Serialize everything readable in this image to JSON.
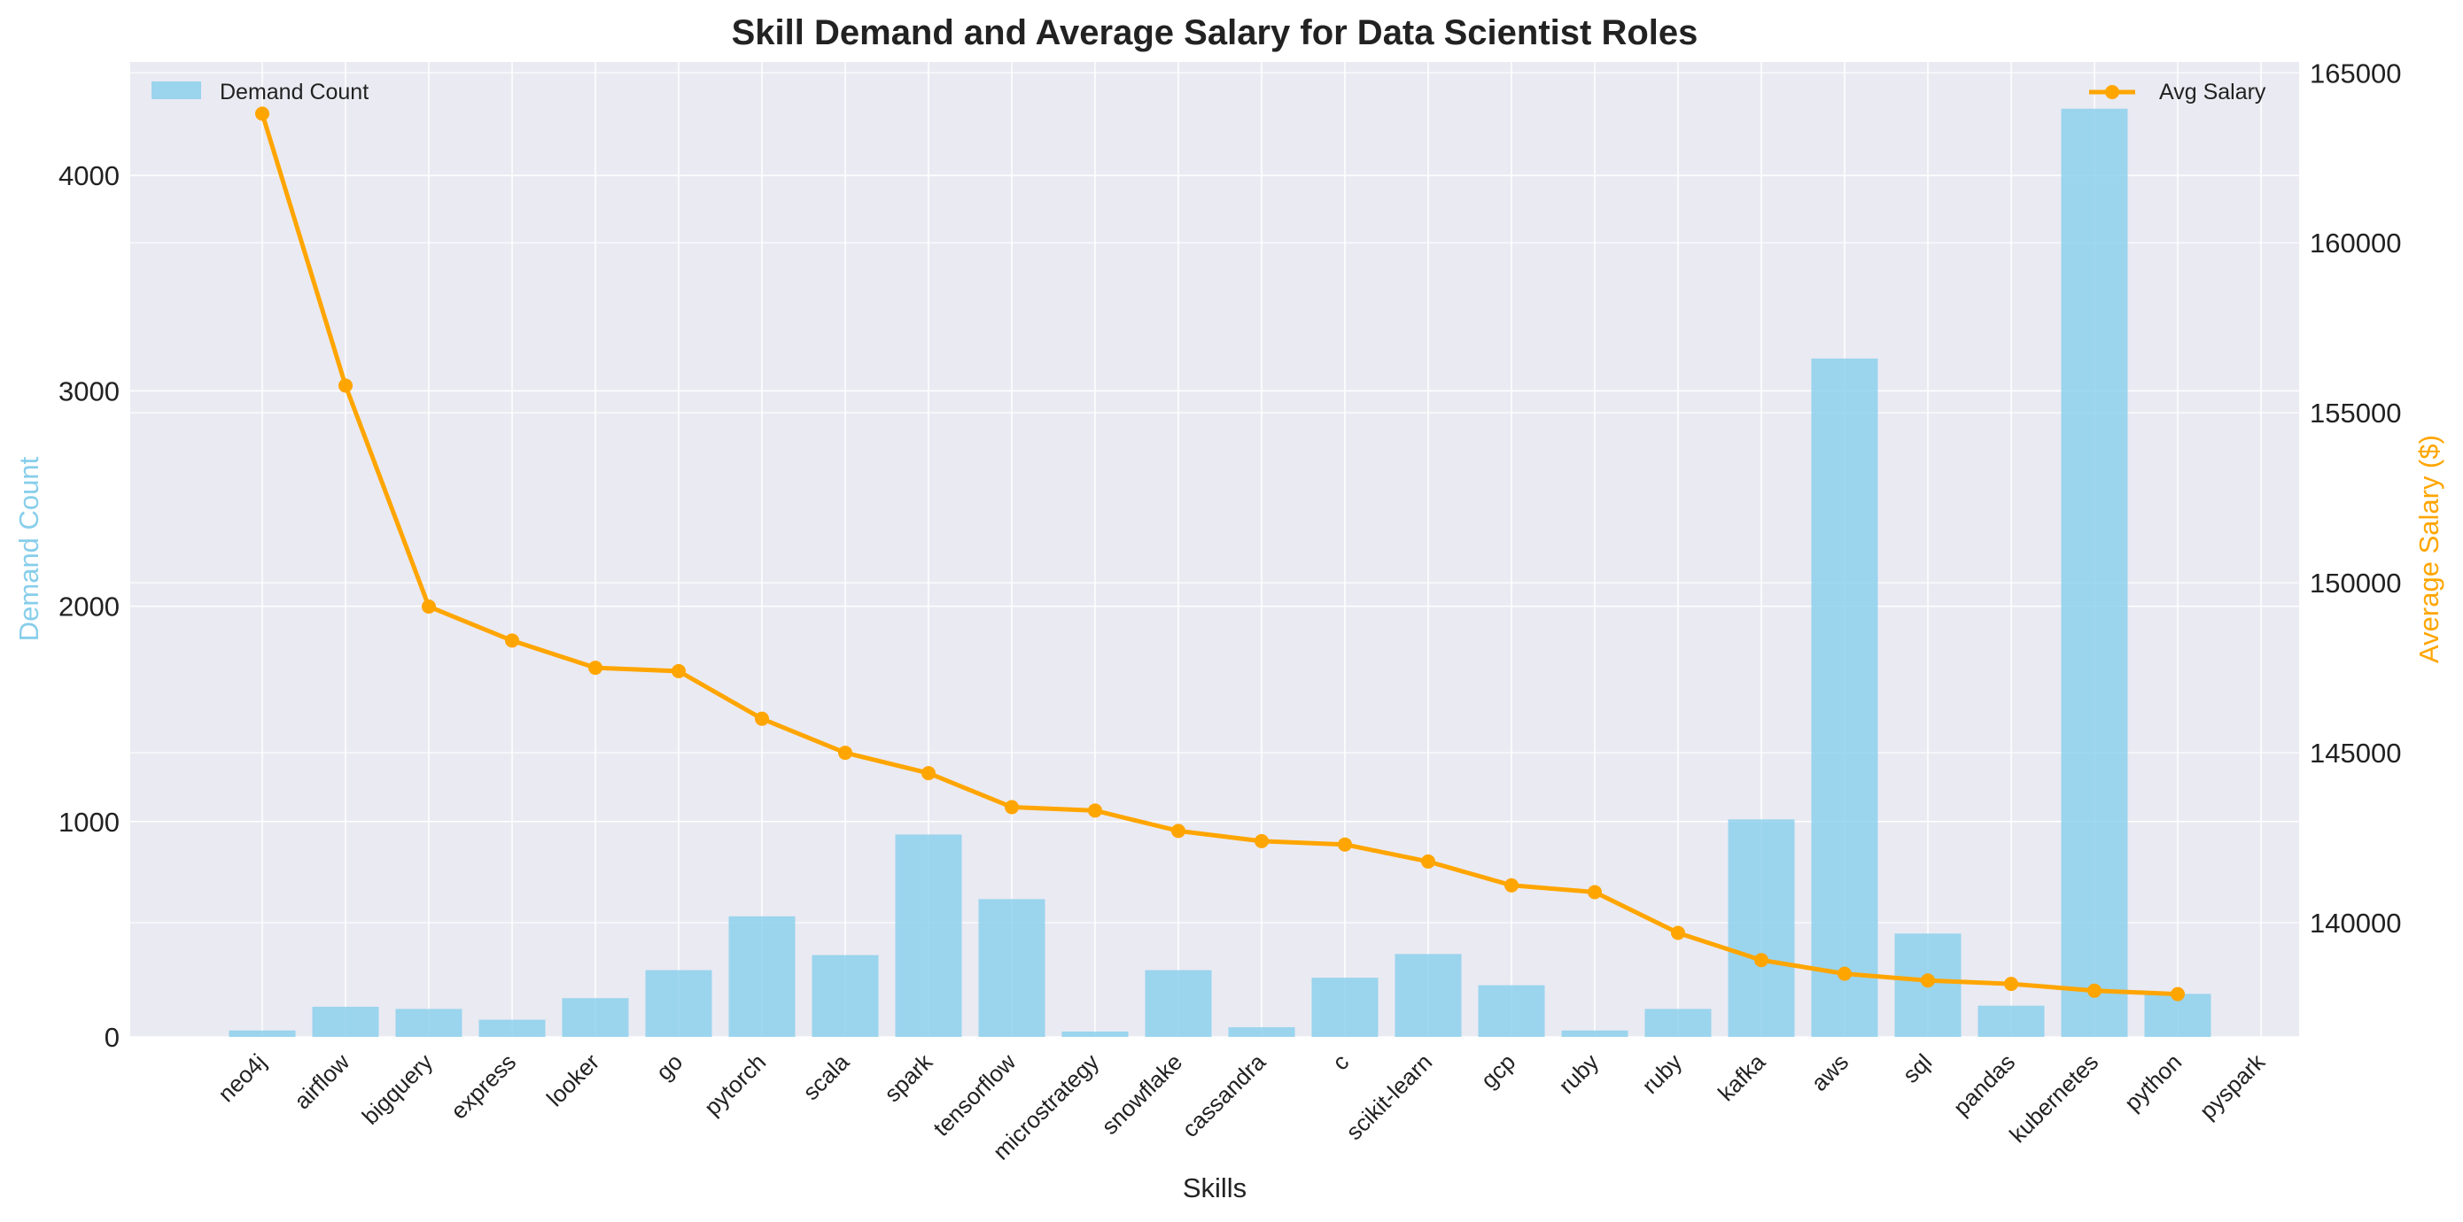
{
  "chart_data": {
    "type": "bar",
    "title": "Skill Demand and Average Salary for Data Scientist Roles",
    "xlabel": "Skills",
    "ylabel_left": "Demand Count",
    "ylabel_right": "Average Salary ($)",
    "categories": [
      "neo4j",
      "airflow",
      "bigquery",
      "express",
      "looker",
      "go",
      "pytorch",
      "scala",
      "spark",
      "tensorflow",
      "microstrategy",
      "snowflake",
      "cassandra",
      "c",
      "scikit-learn",
      "gcp",
      "ruby",
      "ruby",
      "kafka",
      "aws",
      "sql",
      "pandas",
      "kubernetes",
      "python",
      "pyspark"
    ],
    "series": [
      {
        "name": "Demand Count",
        "type": "bar",
        "axis": "left",
        "color": "#87ceeb",
        "values": [
          30,
          140,
          130,
          80,
          180,
          310,
          560,
          380,
          940,
          640,
          25,
          310,
          45,
          275,
          385,
          240,
          30,
          130,
          1010,
          3150,
          480,
          145,
          4310,
          200,
          null
        ]
      },
      {
        "name": "Avg Salary",
        "type": "line",
        "axis": "right",
        "color": "#ffa500",
        "values": [
          163800,
          155800,
          149300,
          148300,
          147500,
          147400,
          146000,
          145000,
          144400,
          143400,
          143300,
          142700,
          142400,
          142300,
          141800,
          141100,
          140900,
          139700,
          138900,
          138500,
          138300,
          138200,
          138000,
          137900,
          null
        ]
      }
    ],
    "ylim_left": [
      0,
      4527
    ],
    "yticks_left": [
      "0",
      "1000",
      "2000",
      "3000",
      "4000"
    ],
    "ylim_right": [
      136640,
      165320
    ],
    "yticks_right": [
      "140000",
      "145000",
      "150000",
      "155000",
      "160000",
      "165000"
    ],
    "grid": true,
    "legend_left_placement": "top-left",
    "legend_right_placement": "top-right"
  }
}
